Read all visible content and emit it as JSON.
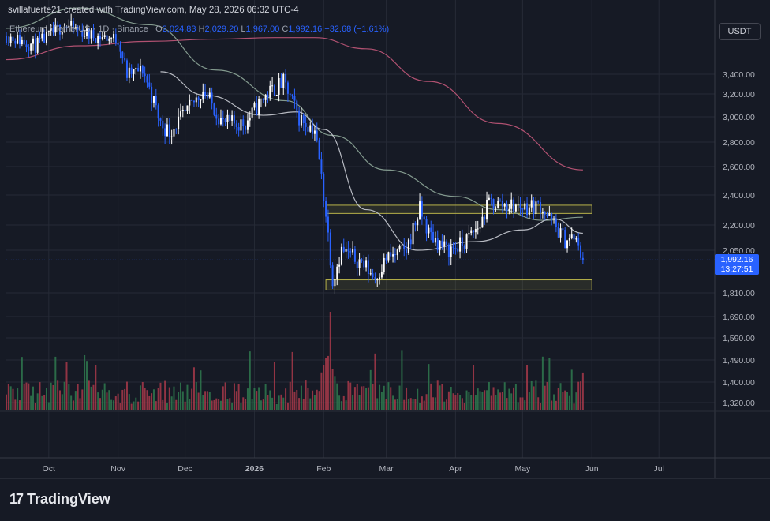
{
  "header": {
    "credit": "svillafuerte21 created with TradingView.com, May 28, 2026 06:32 UTC-4"
  },
  "legend": {
    "symbol": "Ethereum / TetherUS",
    "interval": "1D",
    "exchange": "Binance",
    "open_label": "O",
    "open": "2,024.83",
    "high_label": "H",
    "high": "2,029.20",
    "low_label": "L",
    "low": "1,967.00",
    "close_label": "C",
    "close": "1,992.16",
    "change": "−32.68 (−1.61%)"
  },
  "toolbar": {
    "currency_button": "USDT"
  },
  "price_tag": {
    "price": "1,992.16",
    "countdown": "13:27:51"
  },
  "brand": {
    "name": "TradingView"
  },
  "colors": {
    "background": "#161a25",
    "grid": "#262a36",
    "candle_up": "#ffffff",
    "candle_down": "#2962ff",
    "volume_up": "#2f7a4f",
    "volume_down": "#a83a4a",
    "ma_long": "#c2587a",
    "ma_mid": "#8fa89a",
    "ma_short": "#c9ccd4",
    "zone": "#b8b24a"
  },
  "chart_data": {
    "type": "candlestick",
    "symbol": "ETHUSDT",
    "y_axis_ticks": [
      3400,
      3200,
      3000,
      2800,
      2600,
      2400,
      2200,
      2050,
      1810,
      1690,
      1590,
      1490,
      1400,
      1320
    ],
    "y_axis_labels": [
      "3,400.00",
      "3,200.00",
      "3,000.00",
      "2,800.00",
      "2,600.00",
      "2,400.00",
      "2,200.00",
      "2,050.00",
      "1,810.00",
      "1,690.00",
      "1,590.00",
      "1,490.00",
      "1,400.00",
      "1,320.00"
    ],
    "x_axis_labels": [
      "Oct",
      "Nov",
      "Dec",
      "2026",
      "Feb",
      "Mar",
      "Apr",
      "May",
      "Jun",
      "Jul"
    ],
    "x_axis_dates": [
      "2025-10-01",
      "2025-11-01",
      "2025-12-01",
      "2026-01-01",
      "2026-02-01",
      "2026-03-01",
      "2026-04-01",
      "2026-05-01",
      "2026-06-01",
      "2026-07-01"
    ],
    "x_range": [
      "2025-09-12",
      "2026-07-26"
    ],
    "price_path": [
      [
        "2025-09-12",
        3900
      ],
      [
        "2025-09-25",
        3760
      ],
      [
        "2025-10-08",
        4050
      ],
      [
        "2025-10-20",
        3900
      ],
      [
        "2025-11-01",
        3850
      ],
      [
        "2025-11-05",
        3400
      ],
      [
        "2025-11-12",
        3450
      ],
      [
        "2025-11-20",
        2950
      ],
      [
        "2025-11-24",
        2880
      ],
      [
        "2025-12-02",
        3050
      ],
      [
        "2025-12-09",
        3250
      ],
      [
        "2025-12-18",
        2950
      ],
      [
        "2025-12-28",
        2950
      ],
      [
        "2026-01-06",
        3200
      ],
      [
        "2026-01-14",
        3320
      ],
      [
        "2026-01-21",
        3000
      ],
      [
        "2026-01-28",
        2900
      ],
      [
        "2026-02-01",
        2400
      ],
      [
        "2026-02-05",
        1880
      ],
      [
        "2026-02-09",
        2050
      ],
      [
        "2026-02-18",
        1980
      ],
      [
        "2026-02-24",
        1890
      ],
      [
        "2026-03-01",
        2000
      ],
      [
        "2026-03-10",
        2050
      ],
      [
        "2026-03-16",
        2300
      ],
      [
        "2026-03-20",
        2150
      ],
      [
        "2026-03-28",
        2050
      ],
      [
        "2026-04-04",
        2080
      ],
      [
        "2026-04-12",
        2200
      ],
      [
        "2026-04-16",
        2350
      ],
      [
        "2026-04-24",
        2330
      ],
      [
        "2026-05-03",
        2320
      ],
      [
        "2026-05-09",
        2330
      ],
      [
        "2026-05-13",
        2240
      ],
      [
        "2026-05-20",
        2110
      ],
      [
        "2026-05-24",
        2120
      ],
      [
        "2026-05-28",
        1992.16
      ]
    ],
    "moving_averages": [
      {
        "role": "long",
        "points": [
          [
            "2025-09-12",
            3580
          ],
          [
            "2025-10-15",
            3760
          ],
          [
            "2025-11-15",
            3820
          ],
          [
            "2025-12-15",
            3850
          ],
          [
            "2026-01-10",
            3870
          ],
          [
            "2026-01-28",
            3870
          ],
          [
            "2026-02-20",
            3720
          ],
          [
            "2026-03-20",
            3330
          ],
          [
            "2026-04-20",
            2950
          ],
          [
            "2026-05-28",
            2580
          ]
        ]
      },
      {
        "role": "mid",
        "points": [
          [
            "2025-09-12",
            4000
          ],
          [
            "2025-10-15",
            4300
          ],
          [
            "2025-11-15",
            4050
          ],
          [
            "2025-12-15",
            3450
          ],
          [
            "2026-01-15",
            3150
          ],
          [
            "2026-02-05",
            2850
          ],
          [
            "2026-03-01",
            2580
          ],
          [
            "2026-04-01",
            2390
          ],
          [
            "2026-04-20",
            2300
          ],
          [
            "2026-05-10",
            2230
          ],
          [
            "2026-05-28",
            2250
          ]
        ]
      },
      {
        "role": "short",
        "points": [
          [
            "2025-11-20",
            3430
          ],
          [
            "2025-12-10",
            3200
          ],
          [
            "2026-01-05",
            3020
          ],
          [
            "2026-01-20",
            3050
          ],
          [
            "2026-02-01",
            2900
          ],
          [
            "2026-02-20",
            2300
          ],
          [
            "2026-03-15",
            2050
          ],
          [
            "2026-04-10",
            2100
          ],
          [
            "2026-05-01",
            2170
          ],
          [
            "2026-05-15",
            2240
          ],
          [
            "2026-05-28",
            2150
          ]
        ]
      }
    ],
    "zones": [
      {
        "name": "resistance",
        "from": 2275,
        "to": 2330,
        "start": "2026-02-02",
        "end": "2026-06-01"
      },
      {
        "name": "support",
        "from": 1825,
        "to": 1880,
        "start": "2026-02-02",
        "end": "2026-06-01"
      }
    ],
    "last_price": 1992.16,
    "grid": true
  }
}
